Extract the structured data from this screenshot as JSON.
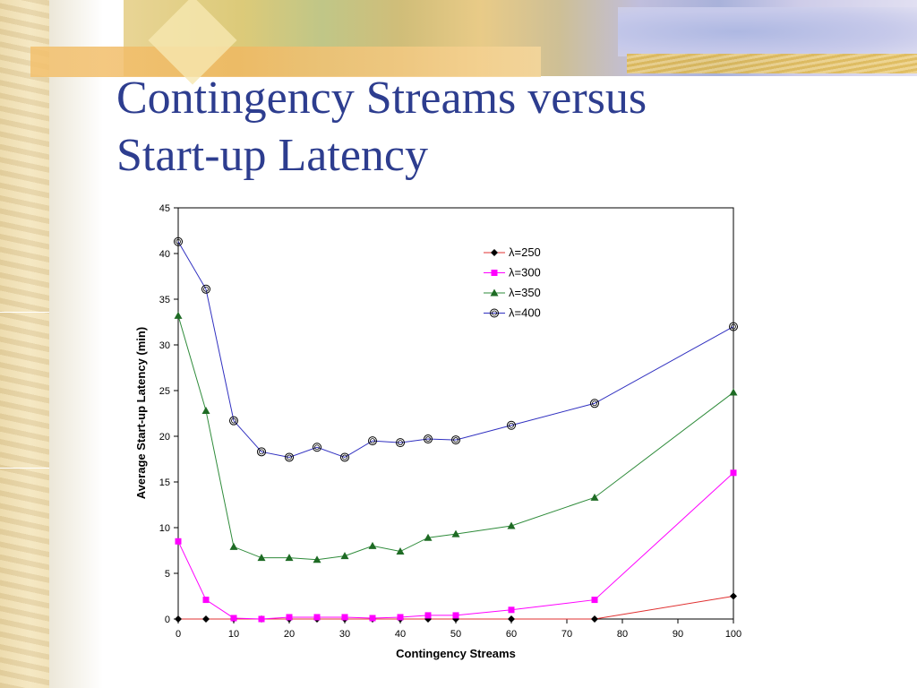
{
  "slide": {
    "title_line1": "Contingency Streams versus",
    "title_line2": "Start-up Latency"
  },
  "colors": {
    "title": "#2d3d8f"
  },
  "chart_data": {
    "type": "line",
    "xlabel": "Contingency Streams",
    "ylabel": "Average Start-up Latency (min)",
    "xlim": [
      0,
      100
    ],
    "ylim": [
      0,
      45
    ],
    "xticks": [
      0,
      10,
      20,
      30,
      40,
      50,
      60,
      70,
      80,
      90,
      100
    ],
    "yticks": [
      0,
      5,
      10,
      15,
      20,
      25,
      30,
      35,
      40,
      45
    ],
    "grid": false,
    "legend_position": "top-right",
    "series": [
      {
        "name": "λ=250",
        "color": "#e03030",
        "marker": "diamond",
        "marker_color": "#000000",
        "x": [
          0,
          5,
          10,
          15,
          20,
          25,
          30,
          35,
          40,
          45,
          50,
          60,
          75,
          100
        ],
        "y": [
          0,
          0,
          0,
          0,
          0,
          0,
          0,
          0,
          0,
          0,
          0,
          0,
          0,
          2.5
        ]
      },
      {
        "name": "λ=300",
        "color": "#ff00ff",
        "marker": "square",
        "marker_color": "#ff00ff",
        "x": [
          0,
          5,
          10,
          15,
          20,
          25,
          30,
          35,
          40,
          45,
          50,
          60,
          75,
          100
        ],
        "y": [
          8.5,
          2.1,
          0.1,
          0.0,
          0.2,
          0.2,
          0.2,
          0.1,
          0.2,
          0.4,
          0.4,
          1.0,
          2.1,
          16.0
        ]
      },
      {
        "name": "λ=350",
        "color": "#2e8b3a",
        "marker": "triangle",
        "marker_color": "#1e6b24",
        "x": [
          0,
          5,
          10,
          15,
          20,
          25,
          30,
          35,
          40,
          45,
          50,
          60,
          75,
          100
        ],
        "y": [
          33.2,
          22.8,
          7.9,
          6.7,
          6.7,
          6.5,
          6.9,
          8.0,
          7.4,
          8.9,
          9.3,
          10.2,
          13.3,
          24.8
        ]
      },
      {
        "name": "λ=400",
        "color": "#3030c0",
        "marker": "circle",
        "marker_color": "#000000",
        "x": [
          0,
          5,
          10,
          15,
          20,
          25,
          30,
          35,
          40,
          45,
          50,
          60,
          75,
          100
        ],
        "y": [
          41.3,
          36.1,
          21.7,
          18.3,
          17.7,
          18.8,
          17.7,
          19.5,
          19.3,
          19.7,
          19.6,
          21.2,
          23.6,
          32.0
        ]
      }
    ]
  }
}
